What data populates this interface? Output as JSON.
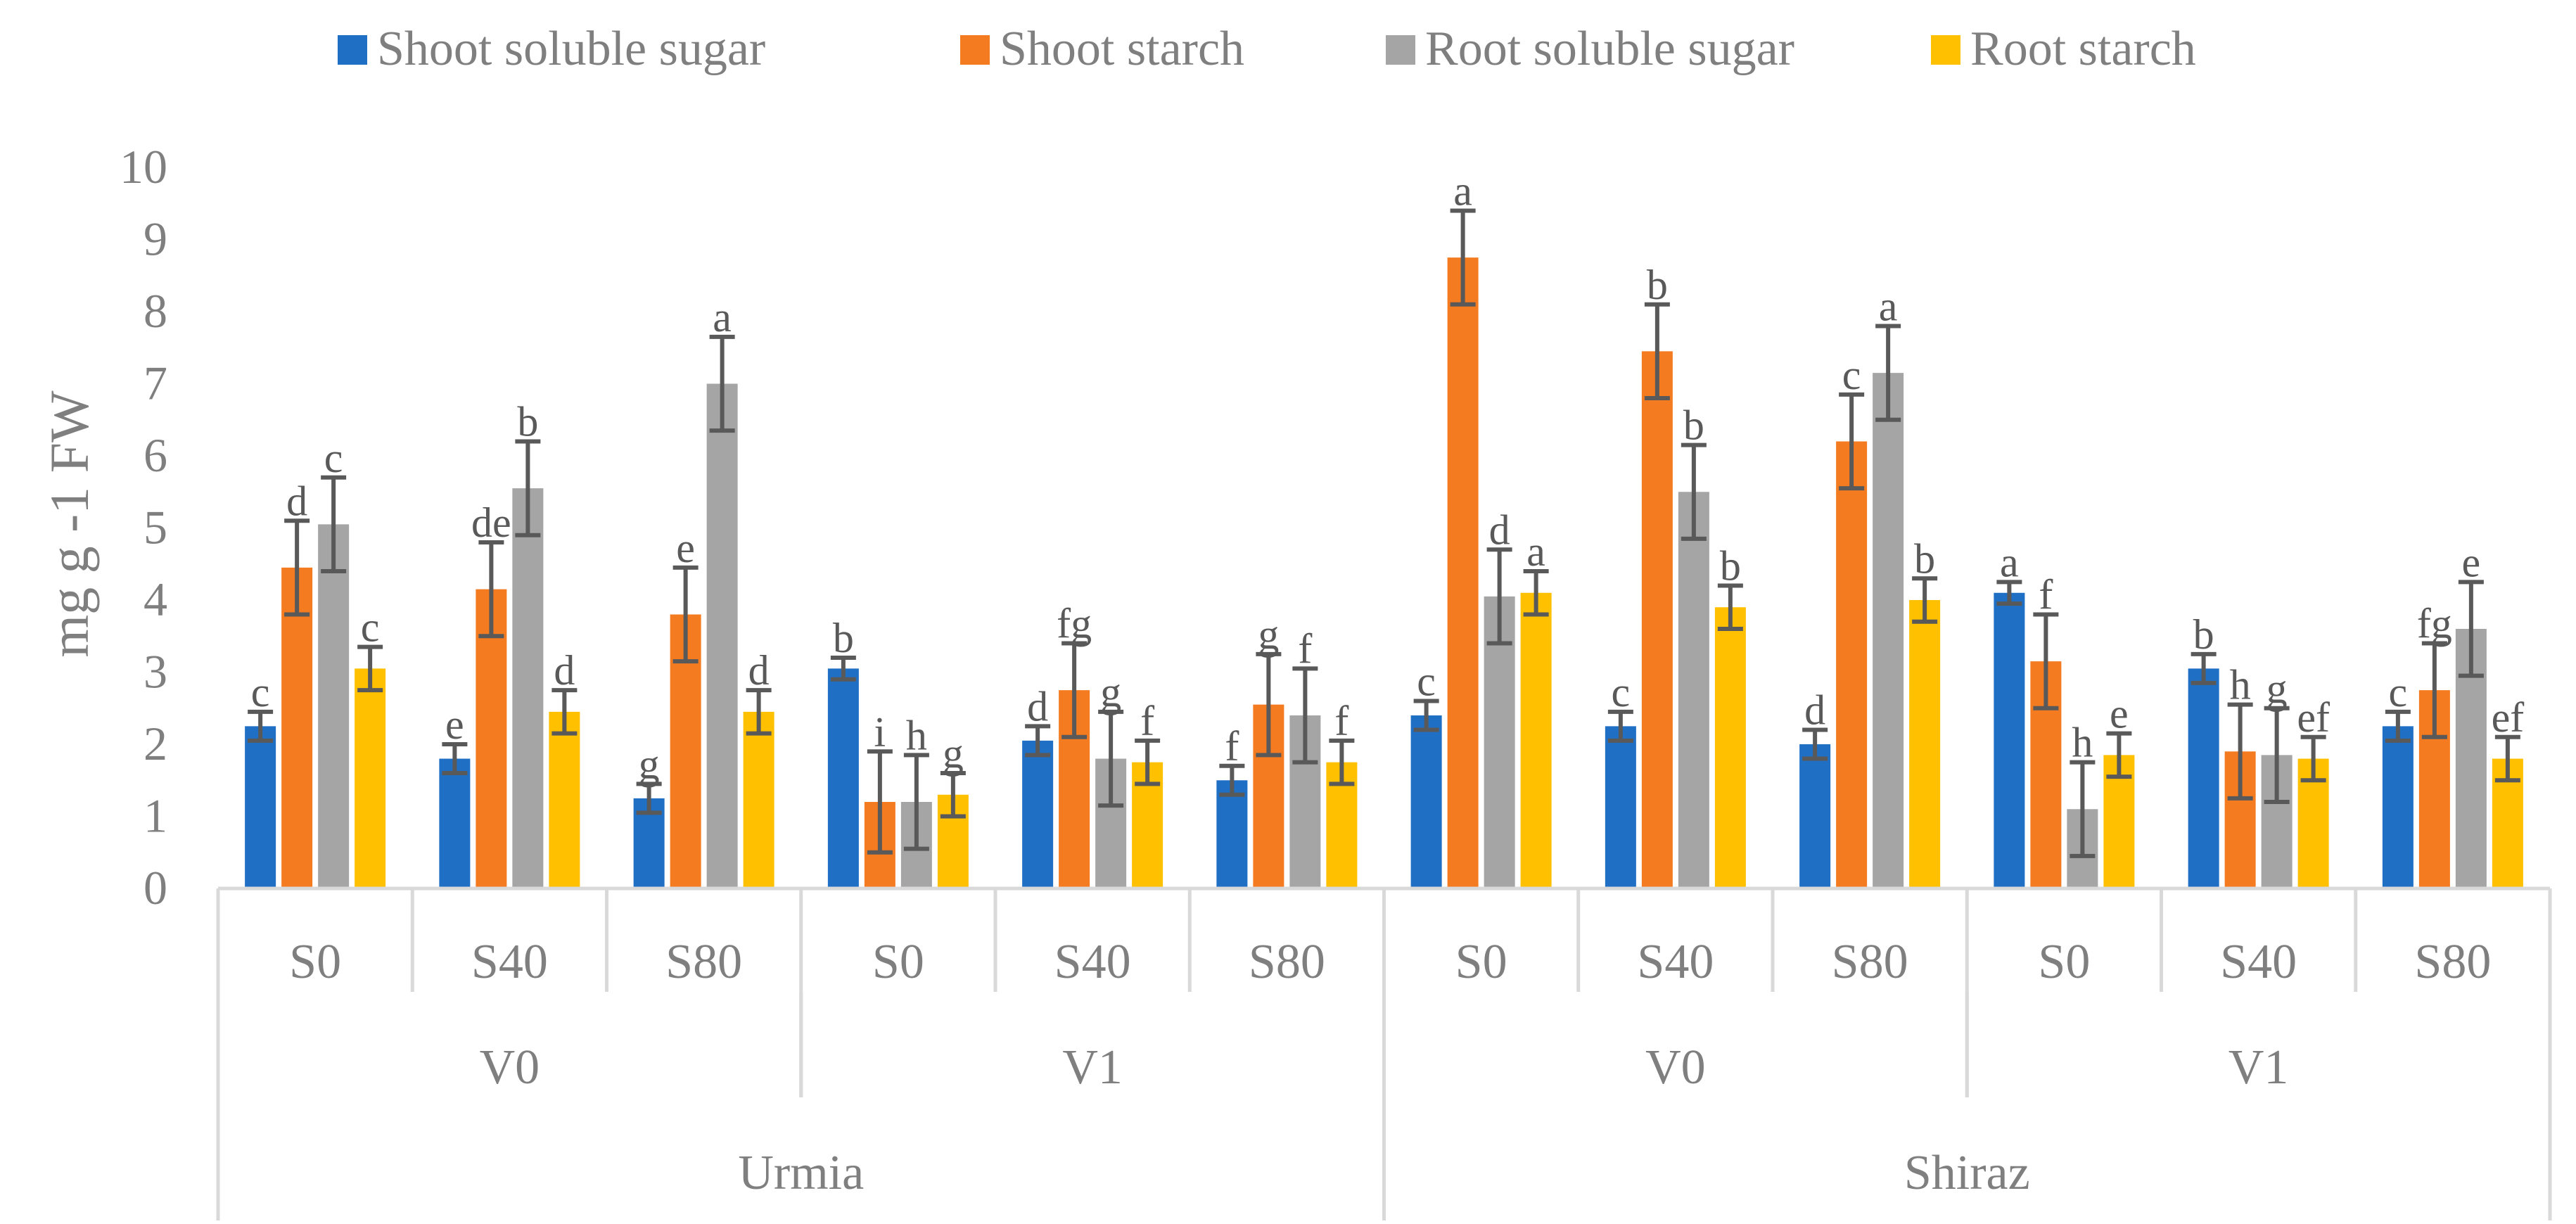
{
  "chart_data": {
    "type": "bar",
    "title": "",
    "xlabel": "",
    "ylabel": "mg g -1 FW",
    "ylim": [
      0,
      10
    ],
    "yticks": [
      "0",
      "1",
      "2",
      "3",
      "4",
      "5",
      "6",
      "7",
      "8",
      "9",
      "10"
    ],
    "grid": false,
    "legend_position": "top",
    "groups": [
      {
        "name": "Urmia",
        "subgroups": [
          {
            "name": "V0",
            "categories": [
              "S0",
              "S40",
              "S80"
            ]
          },
          {
            "name": "V1",
            "categories": [
              "S0",
              "S40",
              "S80"
            ]
          }
        ]
      },
      {
        "name": "Shiraz",
        "subgroups": [
          {
            "name": "V0",
            "categories": [
              "S0",
              "S40",
              "S80"
            ]
          },
          {
            "name": "V1",
            "categories": [
              "S0",
              "S40",
              "S80"
            ]
          }
        ]
      }
    ],
    "series": [
      {
        "name": "Shoot soluble sugar",
        "color": "#1f6fc5",
        "values": [
          2.25,
          1.8,
          1.25,
          3.05,
          2.05,
          1.5,
          2.4,
          2.25,
          2.0,
          4.1,
          3.05,
          2.25
        ],
        "errors": [
          0.2,
          0.2,
          0.2,
          0.15,
          0.2,
          0.2,
          0.2,
          0.2,
          0.2,
          0.15,
          0.2,
          0.2
        ],
        "letters": [
          "c",
          "e",
          "g",
          "b",
          "d",
          "f",
          "c",
          "c",
          "d",
          "a",
          "b",
          "c"
        ]
      },
      {
        "name": "Shoot starch",
        "color": "#f47b20",
        "values": [
          4.45,
          4.15,
          3.8,
          1.2,
          2.75,
          2.55,
          8.75,
          7.45,
          6.2,
          3.15,
          1.9,
          2.75
        ],
        "errors": [
          0.65,
          0.65,
          0.65,
          0.7,
          0.65,
          0.7,
          0.65,
          0.65,
          0.65,
          0.65,
          0.65,
          0.65
        ],
        "letters": [
          "d",
          "de",
          "e",
          "i",
          "fg",
          "g",
          "a",
          "b",
          "c",
          "f",
          "h",
          "fg"
        ]
      },
      {
        "name": "Root soluble sugar",
        "color": "#a5a5a5",
        "values": [
          5.05,
          5.55,
          7.0,
          1.2,
          1.8,
          2.4,
          4.05,
          5.5,
          7.15,
          1.1,
          1.85,
          3.6
        ],
        "errors": [
          0.65,
          0.65,
          0.65,
          0.65,
          0.65,
          0.65,
          0.65,
          0.65,
          0.65,
          0.65,
          0.65,
          0.65
        ],
        "letters": [
          "c",
          "b",
          "a",
          "h",
          "g",
          "f",
          "d",
          "b",
          "a",
          "h",
          "g",
          "e"
        ]
      },
      {
        "name": "Root starch",
        "color": "#ffc000",
        "values": [
          3.05,
          2.45,
          2.45,
          1.3,
          1.75,
          1.75,
          4.1,
          3.9,
          4.0,
          1.85,
          1.8,
          1.8
        ],
        "errors": [
          0.3,
          0.3,
          0.3,
          0.3,
          0.3,
          0.3,
          0.3,
          0.3,
          0.3,
          0.3,
          0.3,
          0.3
        ],
        "letters": [
          "c",
          "d",
          "d",
          "g",
          "f",
          "f",
          "a",
          "b",
          "b",
          "e",
          "ef",
          "ef"
        ]
      }
    ]
  }
}
